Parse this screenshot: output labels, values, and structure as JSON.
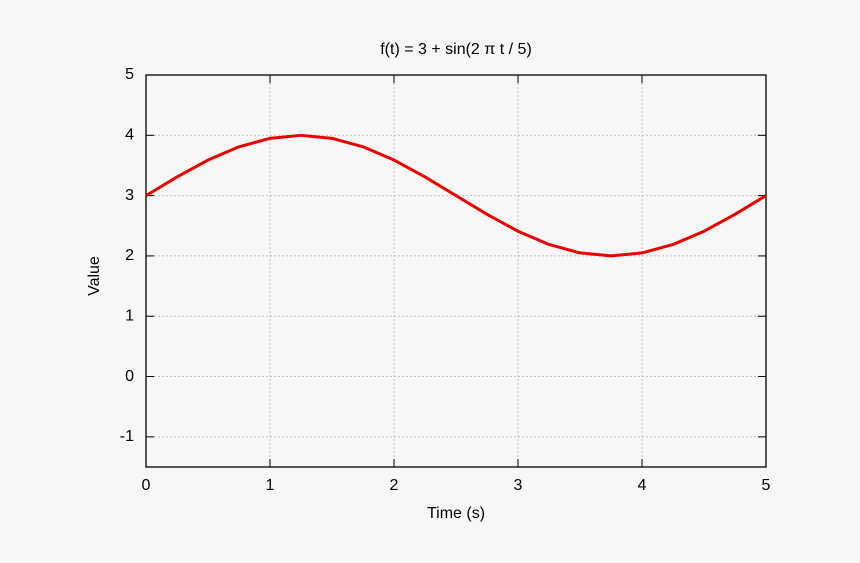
{
  "chart_data": {
    "type": "line",
    "title": "f(t) = 3 + sin(2 π t / 5)",
    "x_label": "Time (s)",
    "y_label": "Value",
    "x": [
      0,
      0.25,
      0.5,
      0.75,
      1,
      1.25,
      1.5,
      1.75,
      2,
      2.25,
      2.5,
      2.75,
      3,
      3.25,
      3.5,
      3.75,
      4,
      4.25,
      4.5,
      4.75,
      5
    ],
    "values": [
      3,
      3.31,
      3.59,
      3.81,
      3.95,
      4,
      3.95,
      3.81,
      3.59,
      3.31,
      3,
      2.69,
      2.41,
      2.19,
      2.05,
      2,
      2.05,
      2.19,
      2.41,
      2.69,
      3
    ],
    "color": "#ee0000",
    "xlim": [
      0,
      5
    ],
    "xticks": [
      0,
      1,
      2,
      3,
      4,
      5
    ],
    "ylim": [
      -1.5,
      5
    ],
    "yticks": [
      -1,
      0,
      1,
      2,
      3,
      4,
      5
    ],
    "grid": true
  }
}
